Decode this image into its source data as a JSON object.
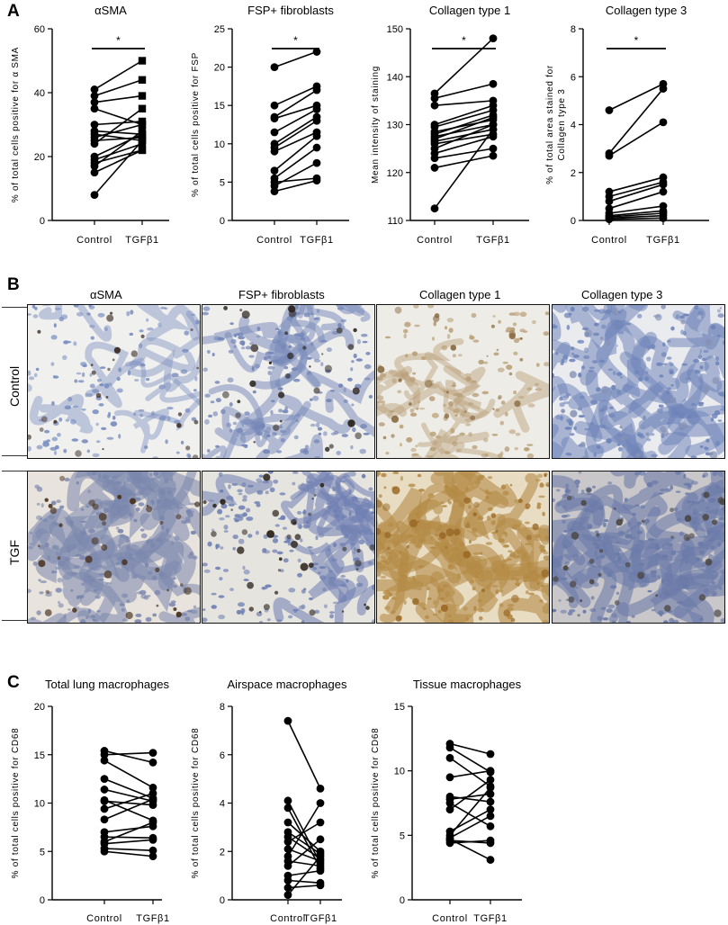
{
  "panels": {
    "a": "A",
    "b": "B",
    "c": "C"
  },
  "panel_b": {
    "column_titles": [
      "αSMA",
      "FSP+ fibroblasts",
      "Collagen type 1",
      "Collagen type 3"
    ],
    "row_labels": [
      "Control",
      "TGF"
    ]
  },
  "chart_data": [
    {
      "type": "scatter",
      "layout": "paired",
      "title": "αSMA",
      "ylabel": "% of total cells positive for α SMA",
      "categories": [
        "Control",
        "TGFβ1"
      ],
      "ylim": [
        0,
        60
      ],
      "yticks": [
        0,
        20,
        40,
        60
      ],
      "significance": "*",
      "marker_treated": "square",
      "pairs": [
        [
          41,
          50
        ],
        [
          39,
          44
        ],
        [
          37,
          39
        ],
        [
          35,
          30
        ],
        [
          30,
          31
        ],
        [
          28,
          27
        ],
        [
          27,
          25
        ],
        [
          26,
          30
        ],
        [
          25,
          26
        ],
        [
          24,
          35
        ],
        [
          20,
          27
        ],
        [
          19,
          24
        ],
        [
          18,
          22
        ],
        [
          17,
          28
        ],
        [
          15,
          22
        ],
        [
          8,
          25
        ]
      ]
    },
    {
      "type": "scatter",
      "layout": "paired",
      "title": "FSP+ fibroblasts",
      "ylabel": "% of total cells positive for FSP",
      "categories": [
        "Control",
        "TGFβ1"
      ],
      "ylim": [
        0,
        25
      ],
      "yticks": [
        0,
        5,
        10,
        15,
        20,
        25
      ],
      "significance": "*",
      "marker_treated": "circle",
      "pairs": [
        [
          20,
          22
        ],
        [
          15,
          17.5
        ],
        [
          13.5,
          17
        ],
        [
          13.3,
          15
        ],
        [
          11.5,
          14.5
        ],
        [
          10,
          13.5
        ],
        [
          9.5,
          13
        ],
        [
          9,
          11.5
        ],
        [
          6.5,
          11
        ],
        [
          5.5,
          9.5
        ],
        [
          4.5,
          7.5
        ],
        [
          3.8,
          5.2
        ],
        [
          5,
          5.5
        ]
      ]
    },
    {
      "type": "scatter",
      "layout": "paired",
      "title": "Collagen type 1",
      "ylabel": "Mean intensity of staining",
      "categories": [
        "Control",
        "TGFβ1"
      ],
      "ylim": [
        110,
        150
      ],
      "yticks": [
        110,
        120,
        130,
        140,
        150
      ],
      "significance": "*",
      "marker_treated": "circle",
      "pairs": [
        [
          136.5,
          148
        ],
        [
          135.5,
          138.5
        ],
        [
          134,
          135
        ],
        [
          130,
          134
        ],
        [
          129.5,
          133
        ],
        [
          128.5,
          131
        ],
        [
          128,
          132
        ],
        [
          127.5,
          130
        ],
        [
          127,
          131.5
        ],
        [
          126.5,
          129
        ],
        [
          126,
          128
        ],
        [
          125,
          130
        ],
        [
          124,
          127.5
        ],
        [
          121,
          123.5
        ],
        [
          123,
          125
        ],
        [
          112.5,
          129
        ]
      ]
    },
    {
      "type": "scatter",
      "layout": "paired",
      "title": "Collagen type 3",
      "ylabel": "% of total area stained for Collagen type 3",
      "categories": [
        "Control",
        "TGFβ1"
      ],
      "ylim": [
        0,
        8
      ],
      "yticks": [
        0,
        2,
        4,
        6,
        8
      ],
      "significance": "*",
      "marker_treated": "circle",
      "pairs": [
        [
          4.6,
          5.7
        ],
        [
          2.8,
          5.5
        ],
        [
          2.7,
          4.1
        ],
        [
          1.2,
          1.8
        ],
        [
          1.0,
          1.6
        ],
        [
          0.8,
          1.5
        ],
        [
          0.5,
          1.2
        ],
        [
          0.3,
          0.6
        ],
        [
          0.2,
          0.4
        ],
        [
          0.15,
          0.3
        ],
        [
          0.1,
          0.2
        ],
        [
          0.05,
          0.1
        ]
      ]
    },
    {
      "type": "scatter",
      "layout": "paired",
      "title": "Total lung macrophages",
      "ylabel": "% of total cells positive for CD68",
      "categories": [
        "Control",
        "TGFβ1"
      ],
      "ylim": [
        0,
        20
      ],
      "yticks": [
        0,
        5,
        10,
        15,
        20
      ],
      "marker_treated": "circle",
      "pairs": [
        [
          15.4,
          14.2
        ],
        [
          15.0,
          15.2
        ],
        [
          14.4,
          11.6
        ],
        [
          12.5,
          10.5
        ],
        [
          11.4,
          10.2
        ],
        [
          10.3,
          8.2
        ],
        [
          10.2,
          9.8
        ],
        [
          9.4,
          11.0
        ],
        [
          8.3,
          10.4
        ],
        [
          7.0,
          7.6
        ],
        [
          6.5,
          6.4
        ],
        [
          6.0,
          8.0
        ],
        [
          5.8,
          6.2
        ],
        [
          5.3,
          5.1
        ],
        [
          5.0,
          4.5
        ]
      ]
    },
    {
      "type": "scatter",
      "layout": "paired",
      "title": "Airspace macrophages",
      "ylabel": "% of total cells positive for CD68",
      "categories": [
        "Control",
        "TGFβ1"
      ],
      "ylim": [
        0,
        8
      ],
      "yticks": [
        0,
        2,
        4,
        6,
        8
      ],
      "marker_treated": "circle",
      "pairs": [
        [
          7.4,
          4.6
        ],
        [
          4.1,
          1.5
        ],
        [
          3.8,
          1.3
        ],
        [
          3.2,
          2.0
        ],
        [
          2.8,
          1.9
        ],
        [
          2.6,
          1.7
        ],
        [
          2.4,
          3.2
        ],
        [
          2.1,
          1.6
        ],
        [
          1.8,
          4.0
        ],
        [
          1.6,
          1.4
        ],
        [
          1.4,
          2.5
        ],
        [
          1.0,
          1.2
        ],
        [
          0.8,
          0.7
        ],
        [
          0.5,
          0.6
        ],
        [
          0.2,
          1.8
        ]
      ]
    },
    {
      "type": "scatter",
      "layout": "paired",
      "title": "Tissue macrophages",
      "ylabel": "% of total cells positive for CD68",
      "categories": [
        "Control",
        "TGFβ1"
      ],
      "ylim": [
        0,
        15
      ],
      "yticks": [
        0,
        5,
        10,
        15
      ],
      "marker_treated": "circle",
      "pairs": [
        [
          12.1,
          11.3
        ],
        [
          11.8,
          9.9
        ],
        [
          11.0,
          8.8
        ],
        [
          9.5,
          10.0
        ],
        [
          8.0,
          7.6
        ],
        [
          7.8,
          8.2
        ],
        [
          7.5,
          5.7
        ],
        [
          7.0,
          9.3
        ],
        [
          5.3,
          7.0
        ],
        [
          5.0,
          8.7
        ],
        [
          4.8,
          6.5
        ],
        [
          4.6,
          4.4
        ],
        [
          4.4,
          4.6
        ],
        [
          4.7,
          3.1
        ]
      ]
    }
  ]
}
